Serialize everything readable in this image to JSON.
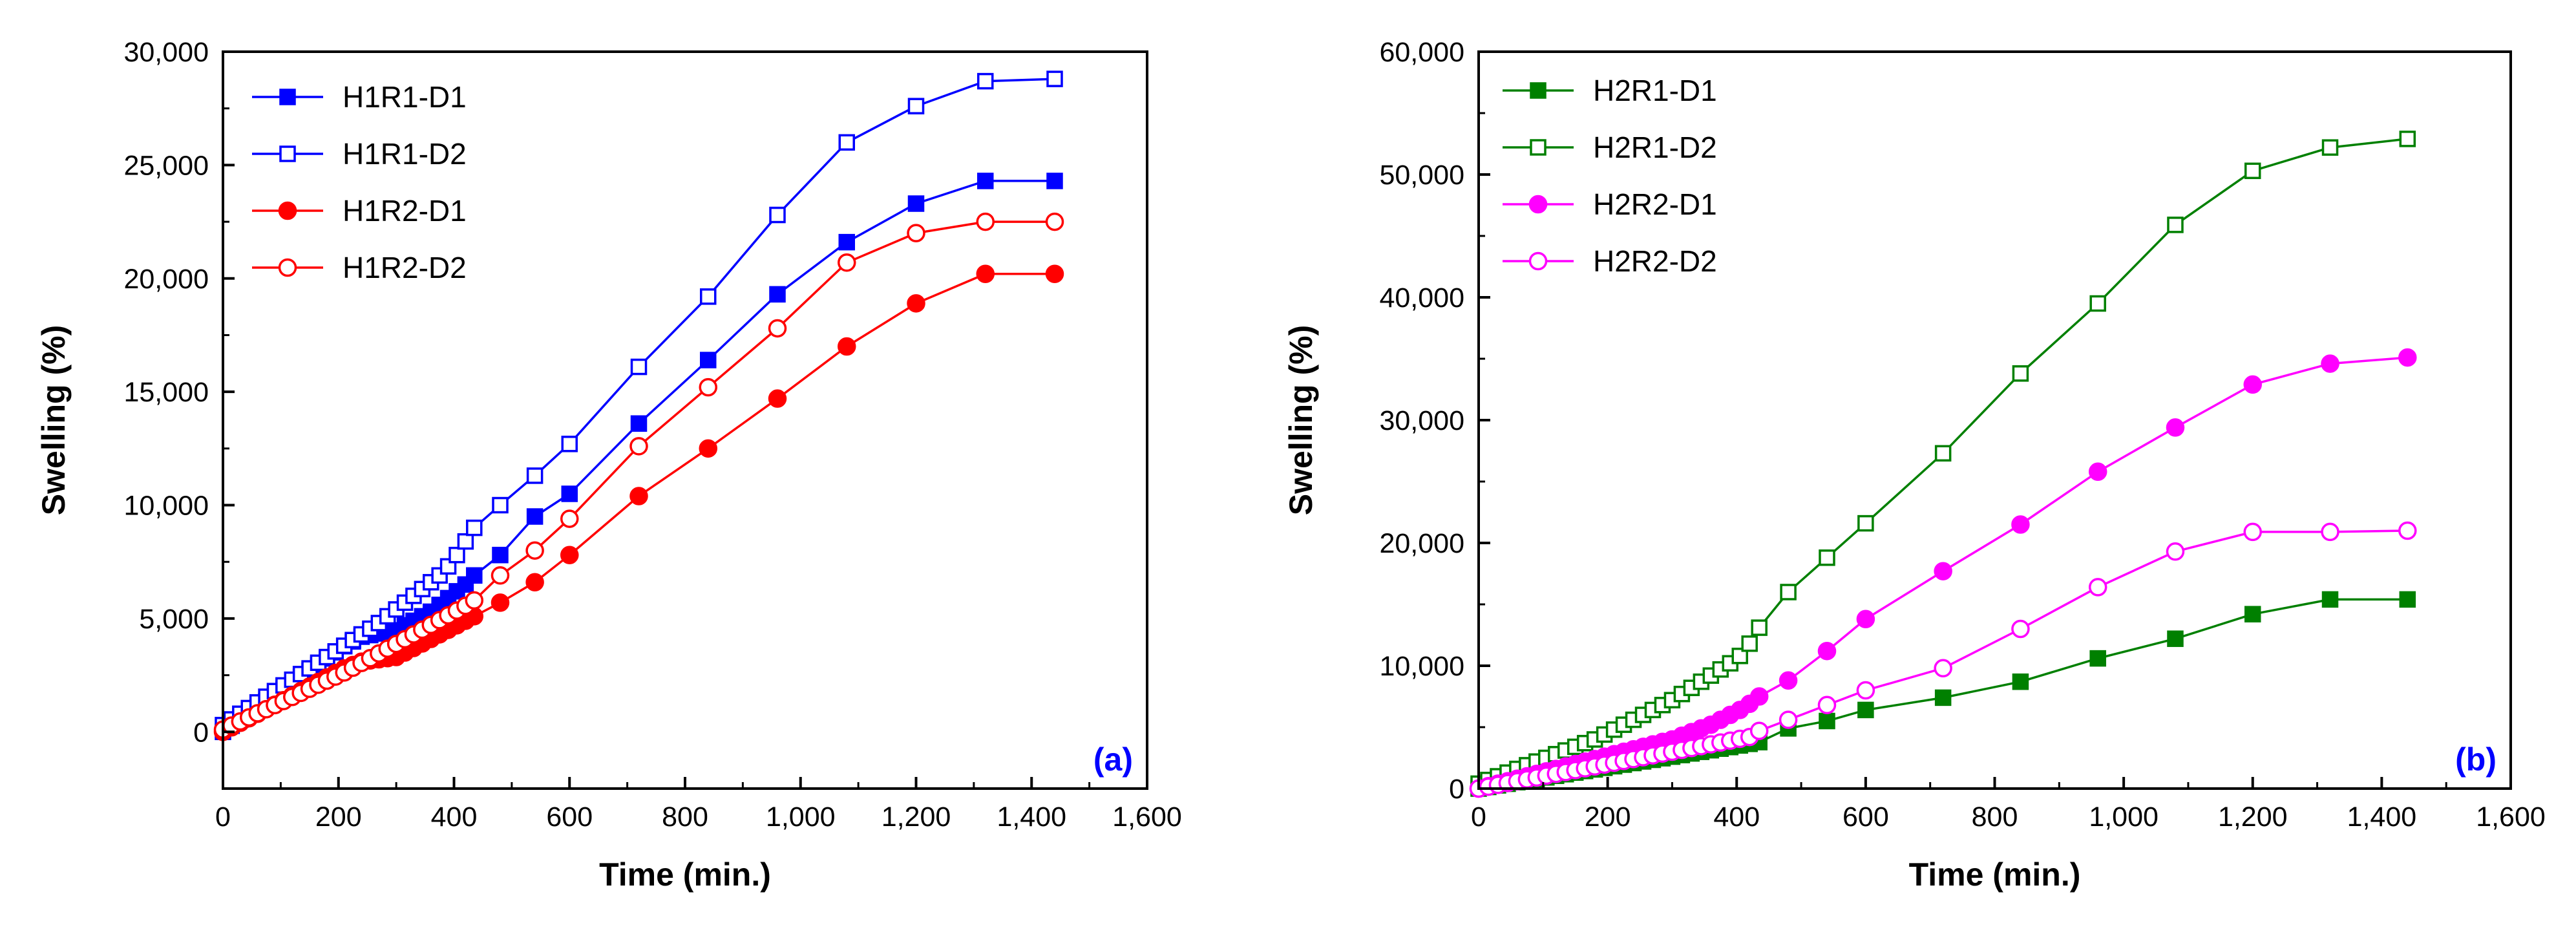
{
  "chart_data": [
    {
      "type": "line",
      "panel_label": "(a)",
      "xlabel": "Time (min.)",
      "ylabel": "Swelling (%)",
      "xlim": [
        0,
        1600
      ],
      "ylim": [
        -2500,
        30000
      ],
      "xticks": [
        0,
        200,
        400,
        600,
        800,
        1000,
        1200,
        1400,
        1600
      ],
      "xtick_labels": [
        "0",
        "200",
        "400",
        "600",
        "800",
        "1,000",
        "1,200",
        "1,400",
        "1,600"
      ],
      "yticks": [
        0,
        5000,
        10000,
        15000,
        20000,
        25000,
        30000
      ],
      "ytick_labels": [
        "0",
        "5,000",
        "10,000",
        "15,000",
        "20,000",
        "25,000",
        "30,000"
      ],
      "grid": false,
      "legend_position": "top-left",
      "series": [
        {
          "name": "H1R1-D1",
          "color": "#0000ff",
          "marker": "square",
          "filled": true,
          "x": [
            0,
            15,
            30,
            45,
            60,
            75,
            90,
            105,
            120,
            135,
            150,
            165,
            180,
            195,
            210,
            225,
            240,
            255,
            270,
            285,
            300,
            315,
            330,
            345,
            360,
            375,
            390,
            405,
            420,
            435,
            480,
            540,
            600,
            720,
            840,
            960,
            1080,
            1200,
            1320,
            1440
          ],
          "y": [
            0,
            270,
            540,
            810,
            1080,
            1350,
            1620,
            1890,
            2160,
            2430,
            2700,
            2970,
            3240,
            3510,
            3780,
            3990,
            4200,
            4270,
            4340,
            4410,
            4480,
            4700,
            4900,
            5100,
            5300,
            5600,
            5900,
            6200,
            6500,
            6900,
            7800,
            9500,
            10500,
            13600,
            16400,
            19300,
            21600,
            23300,
            24300,
            24300
          ]
        },
        {
          "name": "H1R1-D2",
          "color": "#0000ff",
          "marker": "square",
          "filled": false,
          "x": [
            0,
            15,
            30,
            45,
            60,
            75,
            90,
            105,
            120,
            135,
            150,
            165,
            180,
            195,
            210,
            225,
            240,
            255,
            270,
            285,
            300,
            315,
            330,
            345,
            360,
            375,
            390,
            405,
            420,
            435,
            480,
            540,
            600,
            720,
            840,
            960,
            1080,
            1200,
            1320,
            1440
          ],
          "y": [
            300,
            550,
            800,
            1050,
            1300,
            1550,
            1800,
            2050,
            2300,
            2550,
            2800,
            3050,
            3300,
            3550,
            3800,
            4050,
            4300,
            4550,
            4800,
            5100,
            5400,
            5700,
            6000,
            6300,
            6600,
            6900,
            7300,
            7800,
            8400,
            9000,
            10000,
            11300,
            12700,
            16100,
            19200,
            22800,
            26000,
            27600,
            28700,
            28800
          ]
        },
        {
          "name": "H1R2-D1",
          "color": "#ff0000",
          "marker": "circle",
          "filled": true,
          "x": [
            0,
            15,
            30,
            45,
            60,
            75,
            90,
            105,
            120,
            135,
            150,
            165,
            180,
            195,
            210,
            225,
            240,
            255,
            270,
            285,
            300,
            315,
            330,
            345,
            360,
            375,
            390,
            405,
            420,
            435,
            480,
            540,
            600,
            720,
            840,
            960,
            1080,
            1200,
            1320,
            1440
          ],
          "y": [
            0,
            200,
            400,
            600,
            800,
            1000,
            1200,
            1400,
            1600,
            1800,
            2000,
            2200,
            2400,
            2600,
            2800,
            2950,
            3100,
            3150,
            3200,
            3250,
            3300,
            3500,
            3700,
            3900,
            4100,
            4300,
            4500,
            4700,
            4900,
            5100,
            5700,
            6600,
            7800,
            10400,
            12500,
            14700,
            17000,
            18900,
            20200,
            20200
          ]
        },
        {
          "name": "H1R2-D2",
          "color": "#ff0000",
          "marker": "circle",
          "filled": false,
          "x": [
            0,
            15,
            30,
            45,
            60,
            75,
            90,
            105,
            120,
            135,
            150,
            165,
            180,
            195,
            210,
            225,
            240,
            255,
            270,
            285,
            300,
            315,
            330,
            345,
            360,
            375,
            390,
            405,
            420,
            435,
            480,
            540,
            600,
            720,
            840,
            960,
            1080,
            1200,
            1320,
            1440
          ],
          "y": [
            100,
            280,
            460,
            640,
            820,
            1000,
            1180,
            1360,
            1540,
            1720,
            1900,
            2080,
            2260,
            2440,
            2620,
            2830,
            3040,
            3250,
            3460,
            3670,
            3880,
            4090,
            4300,
            4510,
            4720,
            4930,
            5140,
            5350,
            5560,
            5800,
            6900,
            8000,
            9400,
            12600,
            15200,
            17800,
            20700,
            22000,
            22500,
            22500
          ]
        }
      ]
    },
    {
      "type": "line",
      "panel_label": "(b)",
      "xlabel": "Time (min.)",
      "ylabel": "Swelling (%)",
      "xlim": [
        0,
        1600
      ],
      "ylim": [
        0,
        60000
      ],
      "xticks": [
        0,
        200,
        400,
        600,
        800,
        1000,
        1200,
        1400,
        1600
      ],
      "xtick_labels": [
        "0",
        "200",
        "400",
        "600",
        "800",
        "1,000",
        "1,200",
        "1,400",
        "1,600"
      ],
      "yticks": [
        0,
        10000,
        20000,
        30000,
        40000,
        50000,
        60000
      ],
      "ytick_labels": [
        "0",
        "10,000",
        "20,000",
        "30,000",
        "40,000",
        "50,000",
        "60,000"
      ],
      "grid": false,
      "legend_position": "top-left",
      "series": [
        {
          "name": "H2R1-D1",
          "color": "#008000",
          "marker": "square",
          "filled": true,
          "x": [
            0,
            15,
            30,
            45,
            60,
            75,
            90,
            105,
            120,
            135,
            150,
            165,
            180,
            195,
            210,
            225,
            240,
            255,
            270,
            285,
            300,
            315,
            330,
            345,
            360,
            375,
            390,
            405,
            420,
            435,
            480,
            540,
            600,
            720,
            840,
            960,
            1080,
            1200,
            1320,
            1440
          ],
          "y": [
            0,
            130,
            260,
            390,
            520,
            650,
            780,
            910,
            1040,
            1170,
            1300,
            1430,
            1560,
            1690,
            1820,
            1950,
            2080,
            2210,
            2340,
            2470,
            2600,
            2730,
            2860,
            2990,
            3120,
            3250,
            3380,
            3510,
            3640,
            3780,
            4900,
            5500,
            6400,
            7400,
            8700,
            10600,
            12200,
            14200,
            15400,
            15400
          ]
        },
        {
          "name": "H2R1-D2",
          "color": "#008000",
          "marker": "square",
          "filled": false,
          "x": [
            0,
            15,
            30,
            45,
            60,
            75,
            90,
            105,
            120,
            135,
            150,
            165,
            180,
            195,
            210,
            225,
            240,
            255,
            270,
            285,
            300,
            315,
            330,
            345,
            360,
            375,
            390,
            405,
            420,
            435,
            480,
            540,
            600,
            720,
            840,
            960,
            1080,
            1200,
            1320,
            1440
          ],
          "y": [
            400,
            700,
            1000,
            1300,
            1600,
            1900,
            2200,
            2500,
            2800,
            3100,
            3400,
            3700,
            4000,
            4400,
            4800,
            5200,
            5600,
            6000,
            6400,
            6800,
            7200,
            7700,
            8200,
            8700,
            9200,
            9700,
            10200,
            10800,
            11800,
            13100,
            16000,
            18800,
            21600,
            27300,
            33800,
            39500,
            45900,
            50300,
            52200,
            52900
          ]
        },
        {
          "name": "H2R2-D1",
          "color": "#ff00ff",
          "marker": "circle",
          "filled": true,
          "x": [
            0,
            15,
            30,
            45,
            60,
            75,
            90,
            105,
            120,
            135,
            150,
            165,
            180,
            195,
            210,
            225,
            240,
            255,
            270,
            285,
            300,
            315,
            330,
            345,
            360,
            375,
            390,
            405,
            420,
            435,
            480,
            540,
            600,
            720,
            840,
            960,
            1080,
            1200,
            1320,
            1440
          ],
          "y": [
            0,
            200,
            400,
            600,
            800,
            1000,
            1200,
            1400,
            1600,
            1800,
            2000,
            2200,
            2400,
            2600,
            2800,
            3000,
            3200,
            3400,
            3600,
            3800,
            4000,
            4300,
            4600,
            4900,
            5200,
            5600,
            6000,
            6400,
            6900,
            7500,
            8800,
            11200,
            13800,
            17700,
            21500,
            25800,
            29400,
            32900,
            34600,
            35100
          ]
        },
        {
          "name": "H2R2-D2",
          "color": "#ff00ff",
          "marker": "circle",
          "filled": false,
          "x": [
            0,
            15,
            30,
            45,
            60,
            75,
            90,
            105,
            120,
            135,
            150,
            165,
            180,
            195,
            210,
            225,
            240,
            255,
            270,
            285,
            300,
            315,
            330,
            345,
            360,
            375,
            390,
            405,
            420,
            435,
            480,
            540,
            600,
            720,
            840,
            960,
            1080,
            1200,
            1320,
            1440
          ],
          "y": [
            0,
            150,
            300,
            450,
            600,
            750,
            900,
            1050,
            1200,
            1350,
            1500,
            1650,
            1800,
            1950,
            2100,
            2250,
            2400,
            2550,
            2700,
            2850,
            3000,
            3150,
            3300,
            3450,
            3600,
            3750,
            3900,
            4050,
            4200,
            4700,
            5600,
            6800,
            8000,
            9800,
            13000,
            16400,
            19300,
            20900,
            20900,
            21000
          ]
        }
      ]
    }
  ]
}
